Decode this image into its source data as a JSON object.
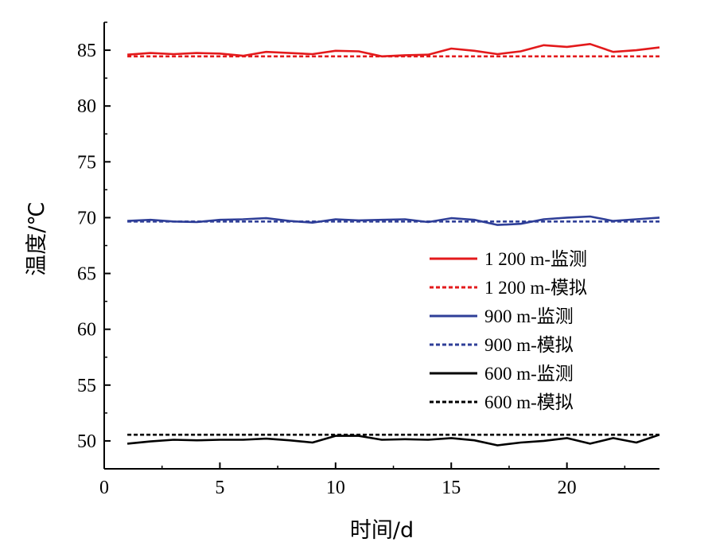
{
  "chart_data": {
    "type": "line",
    "title": "",
    "xlabel": "时间/d",
    "ylabel": "温度/℃",
    "xlim": [
      0,
      24
    ],
    "ylim": [
      47.5,
      87.5
    ],
    "xticks": [
      0,
      5,
      10,
      15,
      20
    ],
    "yticks": [
      50,
      55,
      60,
      65,
      70,
      75,
      80,
      85
    ],
    "grid": false,
    "legend_position": "center-right",
    "x": [
      1,
      2,
      3,
      4,
      5,
      6,
      7,
      8,
      9,
      10,
      11,
      12,
      13,
      14,
      15,
      16,
      17,
      18,
      19,
      20,
      21,
      22,
      23,
      24
    ],
    "series": [
      {
        "name": "1 200 m-监测",
        "color": "#e31a1c",
        "dash": "solid",
        "values": [
          84.6,
          84.75,
          84.65,
          84.75,
          84.7,
          84.5,
          84.85,
          84.75,
          84.65,
          84.95,
          84.9,
          84.45,
          84.55,
          84.6,
          85.15,
          84.95,
          84.65,
          84.9,
          85.45,
          85.3,
          85.55,
          84.85,
          85.0,
          85.25
        ]
      },
      {
        "name": "1 200 m-模拟",
        "color": "#e31a1c",
        "dash": "dashed",
        "values": [
          84.45,
          84.45,
          84.45,
          84.45,
          84.45,
          84.45,
          84.45,
          84.45,
          84.45,
          84.45,
          84.45,
          84.45,
          84.45,
          84.45,
          84.45,
          84.45,
          84.45,
          84.45,
          84.45,
          84.45,
          84.45,
          84.45,
          84.45,
          84.45
        ]
      },
      {
        "name": "900 m-监测",
        "color": "#2f3f98",
        "dash": "solid",
        "values": [
          69.7,
          69.8,
          69.65,
          69.6,
          69.8,
          69.85,
          69.95,
          69.7,
          69.55,
          69.85,
          69.75,
          69.8,
          69.85,
          69.6,
          69.95,
          69.8,
          69.35,
          69.45,
          69.85,
          70.0,
          70.1,
          69.7,
          69.85,
          70.0
        ]
      },
      {
        "name": "900 m-模拟",
        "color": "#2f3f98",
        "dash": "dashed",
        "values": [
          69.65,
          69.65,
          69.65,
          69.65,
          69.65,
          69.65,
          69.65,
          69.65,
          69.65,
          69.65,
          69.65,
          69.65,
          69.65,
          69.65,
          69.65,
          69.65,
          69.65,
          69.65,
          69.65,
          69.65,
          69.65,
          69.65,
          69.65,
          69.65
        ]
      },
      {
        "name": "600 m-监测",
        "color": "#000000",
        "dash": "solid",
        "values": [
          49.75,
          49.95,
          50.1,
          50.05,
          50.1,
          50.1,
          50.2,
          50.05,
          49.85,
          50.45,
          50.45,
          50.1,
          50.15,
          50.1,
          50.25,
          50.05,
          49.6,
          49.85,
          50.0,
          50.25,
          49.75,
          50.25,
          49.85,
          50.55
        ]
      },
      {
        "name": "600 m-模拟",
        "color": "#000000",
        "dash": "dashed",
        "values": [
          50.55,
          50.55,
          50.55,
          50.55,
          50.55,
          50.55,
          50.55,
          50.55,
          50.55,
          50.55,
          50.55,
          50.55,
          50.55,
          50.55,
          50.55,
          50.55,
          50.55,
          50.55,
          50.55,
          50.55,
          50.55,
          50.55,
          50.55,
          50.55
        ]
      }
    ]
  }
}
